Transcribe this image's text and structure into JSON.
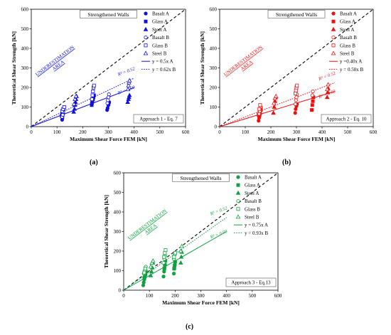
{
  "figure": {
    "captions": [
      "(a)",
      "(b)",
      "(c)"
    ]
  },
  "chart_data": [
    {
      "type": "scatter",
      "panel_label": "(a)",
      "title": "Strengthened Walls",
      "annotation": "Approach 1 - Eq. 7",
      "underestimation_label": [
        "UNDERESTIMATION",
        "AREA"
      ],
      "xlabel": "Maximum Shear Force FEM [kN]",
      "ylabel": "Theoretical Shear Strength [kN]",
      "xlim": [
        0,
        600
      ],
      "ylim": [
        0,
        600
      ],
      "xticks": [
        0,
        100,
        200,
        300,
        400,
        500,
        600
      ],
      "yticks": [
        0,
        100,
        200,
        300,
        400,
        500,
        600
      ],
      "color": "#1010e0",
      "legend_position": "top-right",
      "series": [
        {
          "name": "Basalt A",
          "marker": "circle-filled",
          "x": [
            120,
            121,
            122,
            123,
            124,
            125,
            295,
            297,
            300,
            302,
            303
          ],
          "y": [
            35,
            45,
            55,
            65,
            72,
            85,
            85,
            95,
            110,
            120,
            125
          ]
        },
        {
          "name": "Glass A",
          "marker": "square-filled",
          "x": [
            118,
            120,
            122,
            124,
            126,
            235,
            236,
            238,
            240,
            242,
            244
          ],
          "y": [
            55,
            65,
            72,
            80,
            90,
            110,
            120,
            130,
            140,
            150,
            160
          ]
        },
        {
          "name": "Steel A",
          "marker": "triangle-filled",
          "x": [
            165,
            168,
            170,
            172,
            174,
            176,
            375,
            378,
            380,
            382
          ],
          "y": [
            75,
            90,
            110,
            125,
            140,
            155,
            125,
            140,
            150,
            160
          ]
        },
        {
          "name": "Basalt B",
          "marker": "circle-open",
          "x": [
            120,
            122,
            124,
            126,
            296,
            298,
            300,
            302
          ],
          "y": [
            50,
            60,
            75,
            90,
            120,
            135,
            150,
            165
          ]
        },
        {
          "name": "Glass B",
          "marker": "square-open",
          "x": [
            120,
            124,
            128,
            236,
            238,
            240,
            242,
            244
          ],
          "y": [
            80,
            90,
            100,
            140,
            160,
            180,
            200,
            210
          ]
        },
        {
          "name": "Steel B",
          "marker": "triangle-open",
          "x": [
            166,
            170,
            174,
            376,
            378,
            380,
            382
          ],
          "y": [
            115,
            140,
            155,
            190,
            210,
            225,
            235
          ]
        }
      ],
      "fit_lines": [
        {
          "name": "y = 0.5x A",
          "slope": 0.5,
          "style": "solid",
          "x_end": 400,
          "r2_label": "R² = 0.60"
        },
        {
          "name": "y = 0.62x B",
          "slope": 0.62,
          "style": "dotted",
          "x_end": 400,
          "r2_label": "R² = 0.52"
        }
      ]
    },
    {
      "type": "scatter",
      "panel_label": "(b)",
      "title": "Strengthened Walls",
      "annotation": "Approach 2 - Eq. 10",
      "underestimation_label": [
        "UNDERESTIMATION",
        "AREA"
      ],
      "xlabel": "Maximum Shear Force FEM [kN]",
      "ylabel": "Theoretical Shear Strength [kN]",
      "xlim": [
        0,
        600
      ],
      "ylim": [
        0,
        600
      ],
      "xticks": [
        0,
        100,
        200,
        300,
        400,
        500,
        600
      ],
      "yticks": [
        0,
        100,
        200,
        300,
        400,
        500,
        600
      ],
      "color": "#ee1010",
      "legend_position": "top-right",
      "series": [
        {
          "name": "Basalt A",
          "marker": "circle-filled",
          "x": [
            152,
            154,
            156,
            158,
            160,
            295,
            297,
            300,
            302
          ],
          "y": [
            30,
            45,
            55,
            65,
            80,
            70,
            90,
            105,
            115
          ]
        },
        {
          "name": "Glass A",
          "marker": "square-filled",
          "x": [
            152,
            155,
            158,
            161,
            360,
            362,
            364,
            366
          ],
          "y": [
            60,
            70,
            85,
            95,
            85,
            110,
            130,
            150
          ]
        },
        {
          "name": "Steel A",
          "marker": "triangle-filled",
          "x": [
            210,
            213,
            216,
            219,
            420,
            422,
            424
          ],
          "y": [
            70,
            100,
            130,
            150,
            150,
            175,
            195
          ]
        },
        {
          "name": "Basalt B",
          "marker": "circle-open",
          "x": [
            154,
            157,
            160,
            296,
            298,
            300,
            302,
            362,
            364
          ],
          "y": [
            65,
            80,
            100,
            115,
            135,
            150,
            165,
            160,
            180
          ]
        },
        {
          "name": "Glass B",
          "marker": "square-open",
          "x": [
            155,
            158,
            296,
            298,
            300,
            302
          ],
          "y": [
            90,
            110,
            170,
            185,
            200,
            210
          ]
        },
        {
          "name": "Steel B",
          "marker": "triangle-open",
          "x": [
            212,
            216,
            220,
            420,
            424
          ],
          "y": [
            120,
            145,
            155,
            190,
            215
          ]
        }
      ],
      "fit_lines": [
        {
          "name": "y =0.40x A",
          "slope": 0.4,
          "style": "solid",
          "x_end": 450,
          "r2_label": "R² = 0.60"
        },
        {
          "name": "y = 0.50x B",
          "slope": 0.5,
          "style": "dotted",
          "x_end": 450,
          "r2_label": "R² = 0.52"
        }
      ]
    },
    {
      "type": "scatter",
      "panel_label": "(c)",
      "title": "Strengthened Walls",
      "annotation": "Approach 3 - Eq.13",
      "underestimation_label": [
        "UNDERESTIMATION",
        "AREA"
      ],
      "xlabel": "Maximum Shear Force FEM [kN]",
      "ylabel": "Theoretical Shear Strength [kN]",
      "xlim": [
        0,
        600
      ],
      "ylim": [
        0,
        600
      ],
      "xticks": [
        0,
        100,
        200,
        300,
        400,
        500,
        600
      ],
      "yticks": [
        0,
        100,
        200,
        300,
        400,
        500,
        600
      ],
      "color": "#10a040",
      "legend_position": "top-right",
      "series": [
        {
          "name": "Basalt A",
          "marker": "circle-filled",
          "x": [
            76,
            78,
            80,
            82,
            84,
            86,
            155,
            157,
            159,
            161,
            195,
            197,
            199
          ],
          "y": [
            25,
            40,
            55,
            65,
            80,
            90,
            70,
            95,
            115,
            130,
            85,
            110,
            130
          ]
        },
        {
          "name": "Glass A",
          "marker": "square-filled",
          "x": [
            80,
            82,
            84,
            86,
            158,
            160,
            162,
            196,
            198,
            200
          ],
          "y": [
            60,
            70,
            80,
            95,
            110,
            130,
            150,
            110,
            125,
            145
          ]
        },
        {
          "name": "Steel A",
          "marker": "triangle-filled",
          "x": [
            105,
            108,
            111,
            114,
            222,
            224,
            226
          ],
          "y": [
            75,
            95,
            115,
            140,
            140,
            170,
            195
          ]
        },
        {
          "name": "Basalt B",
          "marker": "circle-open",
          "x": [
            78,
            82,
            86,
            155,
            158,
            161,
            195,
            198
          ],
          "y": [
            85,
            100,
            120,
            140,
            160,
            175,
            160,
            180
          ]
        },
        {
          "name": "Glass B",
          "marker": "square-open",
          "x": [
            80,
            84,
            157,
            160,
            163,
            196,
            200
          ],
          "y": [
            90,
            110,
            170,
            190,
            205,
            170,
            190
          ]
        },
        {
          "name": "Steel B",
          "marker": "triangle-open",
          "x": [
            105,
            110,
            114,
            222,
            226
          ],
          "y": [
            120,
            140,
            150,
            200,
            225
          ]
        }
      ],
      "fit_lines": [
        {
          "name": "y = 0.75x A",
          "slope": 0.75,
          "style": "solid",
          "x_end": 400,
          "r2_label": "R² = 0.60"
        },
        {
          "name": "y = 0.93x B",
          "slope": 0.93,
          "style": "dotted",
          "x_end": 400,
          "r2_label": "R² = 0.52"
        }
      ]
    }
  ]
}
